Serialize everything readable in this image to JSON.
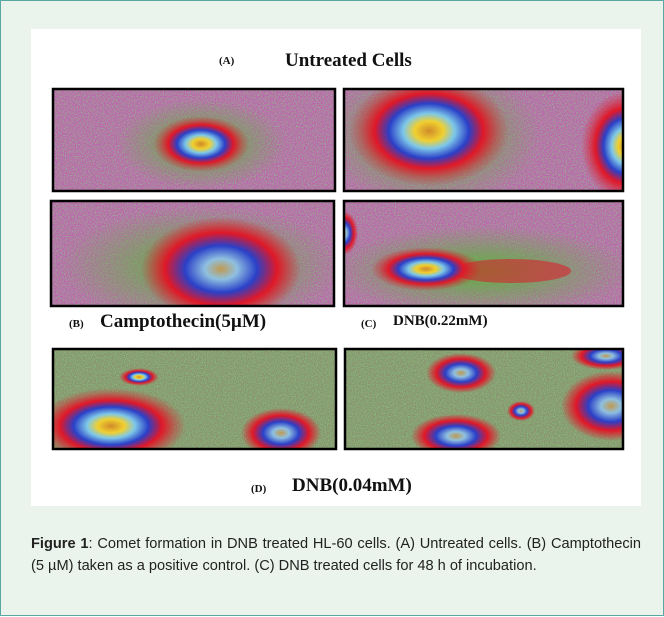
{
  "figure": {
    "panels": [
      {
        "tag": "(A)",
        "title": "Untreated Cells"
      },
      {
        "tag": "(B)",
        "title": "Camptothecin(5µM)"
      },
      {
        "tag": "(C)",
        "title": "DNB(0.22mM)"
      },
      {
        "tag": "(D)",
        "title": "DNB(0.04mM)"
      }
    ]
  },
  "caption": {
    "label": "Figure 1",
    "text": ": Comet formation in DNB treated HL-60 cells. (A) Untreated cells. (B) Camptothecin (5 µM) taken as a positive control. (C) DNB treated cells for 48 h of incubation."
  }
}
